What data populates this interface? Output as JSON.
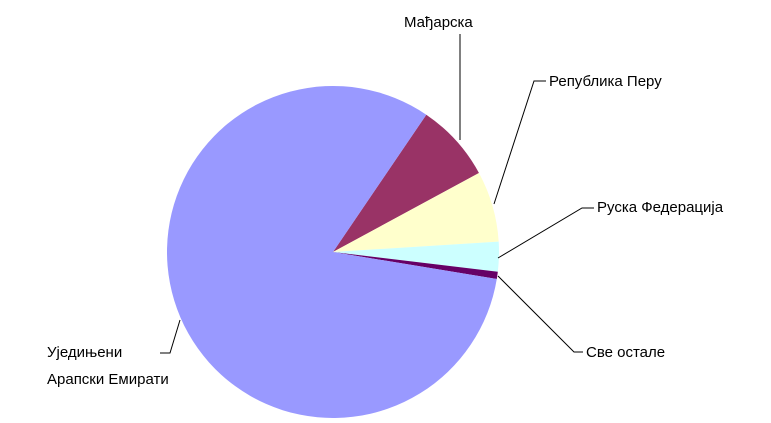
{
  "chart_data": {
    "type": "pie",
    "categories": [
      "Мађарска",
      "Република Перу",
      "Руска Федерација",
      "Све остале",
      "Уједињени\nАрапски Емирати"
    ],
    "values": [
      7.6,
      6.9,
      2.9,
      0.7,
      81.9
    ],
    "colors": [
      "#993366",
      "#ffffcc",
      "#ccffff",
      "#660066",
      "#9999ff"
    ]
  }
}
